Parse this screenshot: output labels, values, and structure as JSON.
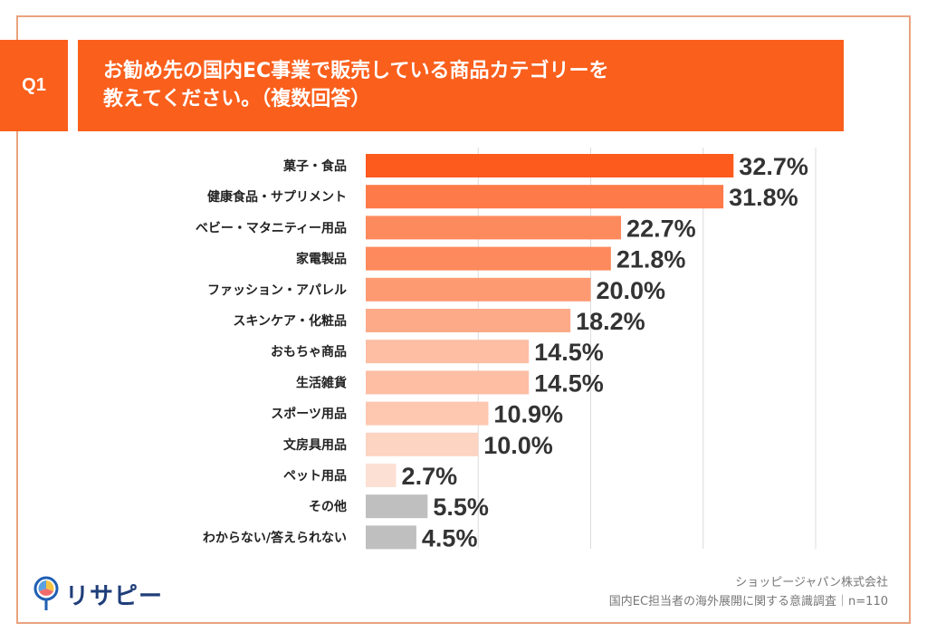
{
  "header": {
    "badge": "Q1",
    "title": "お勧め先の国内EC事業で販売している商品カテゴリーを\n教えてください。（複数回答）"
  },
  "chart_data": {
    "type": "bar",
    "orientation": "horizontal",
    "categories": [
      "菓子・食品",
      "健康食品・サプリメント",
      "ベビー・マタニティー用品",
      "家電製品",
      "ファッション・アパレル",
      "スキンケア・化粧品",
      "おもちゃ商品",
      "生活雑貨",
      "スポーツ用品",
      "文房具用品",
      "ペット用品",
      "その他",
      "わからない/答えられない"
    ],
    "values": [
      32.7,
      31.8,
      22.7,
      21.8,
      20.0,
      18.2,
      14.5,
      14.5,
      10.9,
      10.0,
      2.7,
      5.5,
      4.5
    ],
    "value_labels": [
      "32.7%",
      "31.8%",
      "22.7%",
      "21.8%",
      "20.0%",
      "18.2%",
      "14.5%",
      "14.5%",
      "10.9%",
      "10.0%",
      "2.7%",
      "5.5%",
      "4.5%"
    ],
    "colors": [
      "#fd5a1e",
      "#fe7a48",
      "#fd8a5c",
      "#fd8a5c",
      "#fd9a72",
      "#fdaa89",
      "#fdbea3",
      "#fdbea3",
      "#fdc7b0",
      "#fdd3c1",
      "#fde0d4",
      "#bfbfbf",
      "#bfbfbf"
    ],
    "xlim": [
      0,
      40
    ],
    "gridlines_at": [
      10,
      20,
      30,
      40
    ],
    "grid": true,
    "xaxis_visible": false
  },
  "footer": {
    "logo_text": "リサピー",
    "source_line1": "ショッピージャパン株式会社",
    "source_line2": "国内EC担当者の海外展開に関する意識調査｜n=110"
  }
}
